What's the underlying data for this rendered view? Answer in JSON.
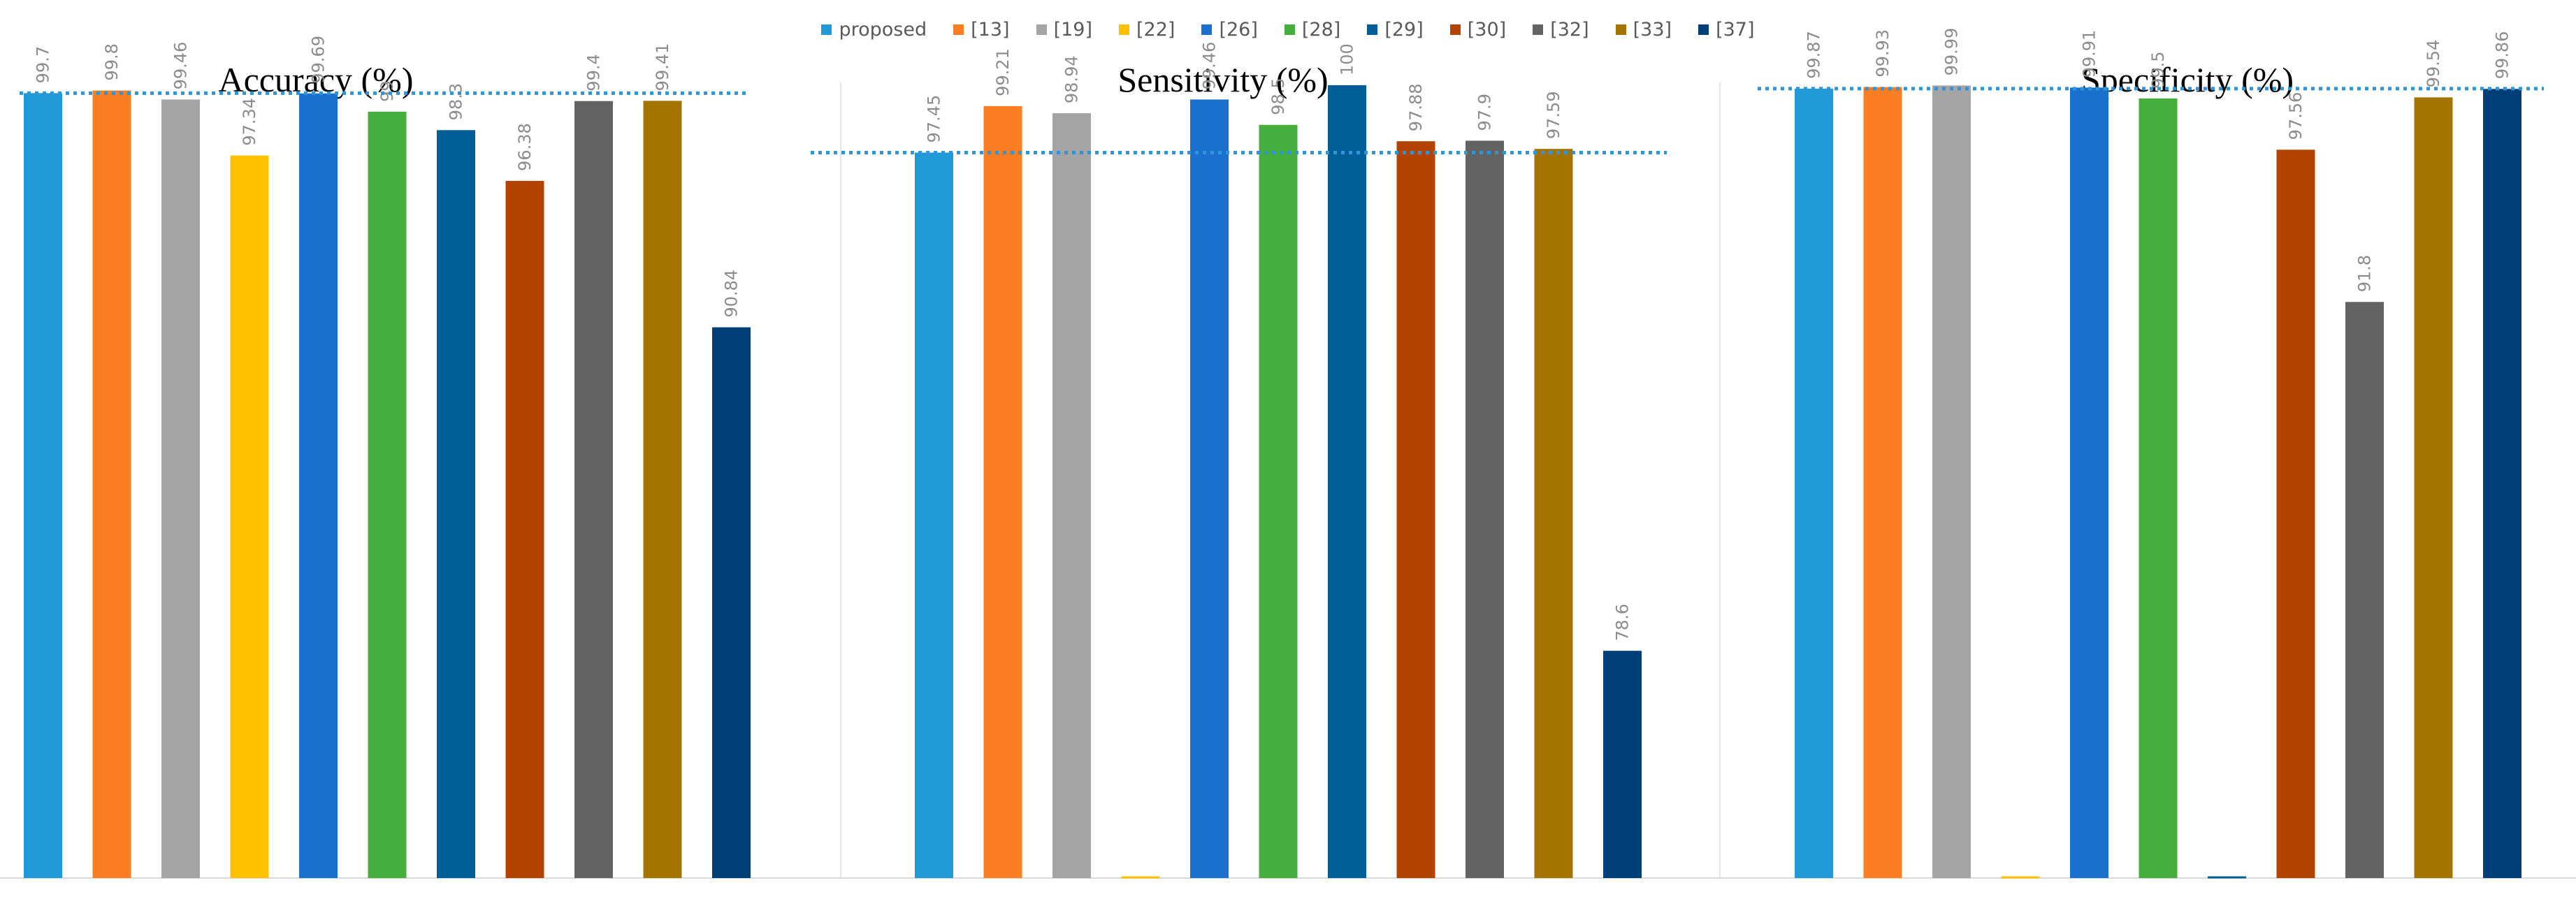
{
  "chart_data": {
    "type": "bar",
    "legend_position": "top",
    "legend": [
      {
        "name": "proposed",
        "color": "#1f9ad6"
      },
      {
        "name": "[13]",
        "color": "#fb7e22"
      },
      {
        "name": "[19]",
        "color": "#a5a5a5"
      },
      {
        "name": "[22]",
        "color": "#ffc000"
      },
      {
        "name": "[26]",
        "color": "#1a70cc"
      },
      {
        "name": "[28]",
        "color": "#46ae3c"
      },
      {
        "name": "[29]",
        "color": "#005e96"
      },
      {
        "name": "[30]",
        "color": "#b54300"
      },
      {
        "name": "[32]",
        "color": "#636363"
      },
      {
        "name": "[33]",
        "color": "#a57400"
      },
      {
        "name": "[37]",
        "color": "#003e78"
      }
    ],
    "reference_line": {
      "color": "#2e95d8",
      "style": "dotted",
      "at": "proposed value"
    },
    "panels": [
      {
        "title": "Accuracy (%)",
        "values": [
          99.7,
          99.8,
          99.46,
          97.34,
          99.69,
          99,
          98.3,
          96.38,
          99.4,
          99.41,
          90.84
        ],
        "labels": [
          "99.7",
          "99.8",
          "99.46",
          "97.34",
          "99.69",
          "99",
          "98.3",
          "96.38",
          "99.4",
          "99.41",
          "90.84"
        ],
        "ylim": [
          70,
          100
        ]
      },
      {
        "title": "Sensitivity (%)",
        "values": [
          97.45,
          99.21,
          98.94,
          null,
          99.46,
          98.5,
          100,
          97.88,
          97.9,
          97.59,
          78.6
        ],
        "labels": [
          "97.45",
          "99.21",
          "98.94",
          "",
          "99.46",
          "98.5",
          "100",
          "97.88",
          "97.9",
          "97.59",
          "78.6"
        ],
        "ylim": [
          70,
          100
        ]
      },
      {
        "title": "Specificity (%)",
        "values": [
          99.87,
          99.93,
          99.99,
          null,
          99.91,
          99.5,
          null,
          97.56,
          91.8,
          99.54,
          99.86
        ],
        "labels": [
          "99.87",
          "99.93",
          "99.99",
          "",
          "99.91",
          "99.5",
          "",
          "97.56",
          "91.8",
          "99.54",
          "99.86"
        ],
        "ylim": [
          70,
          100
        ]
      }
    ]
  }
}
